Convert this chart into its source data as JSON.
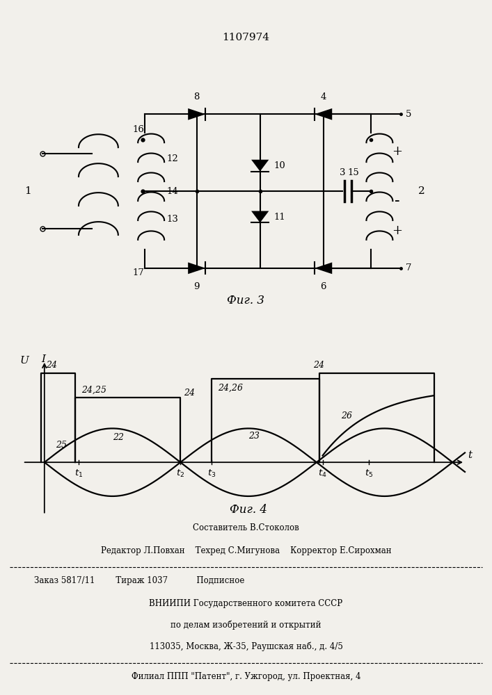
{
  "patent_number": "1107974",
  "fig3_label": "Фиг. 3",
  "fig4_label": "Фиг. 4",
  "bottom_text_line1": "Составитель В.Стоколов",
  "bottom_text_line2": "Редактор Л.Повхан    Техред С.Мигунова    Корректор Е.Сирохман",
  "bottom_text_line3": "Заказ 5817/11        Тираж 1037           Подписное",
  "bottom_text_line4": "ВНИИПИ Государственного комитета СССР",
  "bottom_text_line5": "по делам изобретений и открытий",
  "bottom_text_line6": "113035, Москва, Ж-35, Раушская наб., д. 4/5",
  "bottom_text_line7": "Филиал ППП \"Патент\", г. Ужгород, ул. Проектная, 4",
  "bg_color": "#f2f0eb",
  "line_color": "#000000"
}
